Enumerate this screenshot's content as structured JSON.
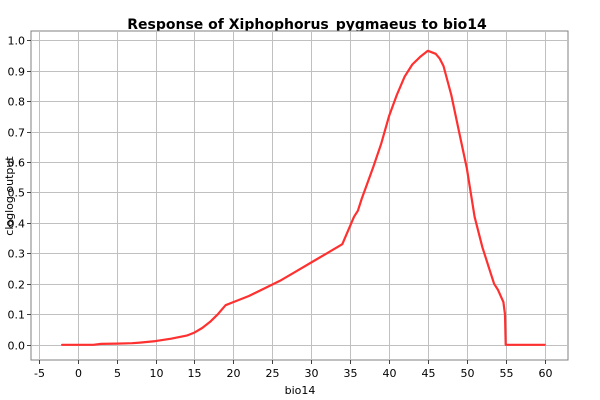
{
  "chart_data": {
    "type": "line",
    "title": "Response of Xiphophorus_pygmaeus to bio14",
    "xlabel": "bio14",
    "ylabel": "cloglog output",
    "xlim": [
      -6,
      63
    ],
    "ylim": [
      -0.05,
      1.03
    ],
    "xticks": [
      -5,
      0,
      5,
      10,
      15,
      20,
      25,
      30,
      35,
      40,
      45,
      50,
      55,
      60
    ],
    "yticks": [
      0.0,
      0.1,
      0.2,
      0.3,
      0.4,
      0.5,
      0.6,
      0.7,
      0.8,
      0.9,
      1.0
    ],
    "grid": true,
    "series": [
      {
        "color": "#ff3030",
        "x": [
          -2,
          0,
          2,
          3,
          5,
          7,
          8,
          10,
          12,
          14,
          15,
          16,
          17,
          18,
          18.5,
          19,
          20,
          22,
          24,
          26,
          28,
          30,
          32,
          34,
          35.5,
          36,
          36.5,
          37,
          38,
          39,
          40,
          41,
          42,
          43,
          44,
          45,
          45.5,
          46,
          46.5,
          47,
          48,
          49,
          50,
          51,
          52,
          53,
          53.5,
          54,
          54.7,
          54.9,
          55,
          55.5,
          58,
          60
        ],
        "y": [
          0.0,
          0.0,
          0.0,
          0.003,
          0.004,
          0.005,
          0.007,
          0.012,
          0.02,
          0.03,
          0.04,
          0.055,
          0.075,
          0.1,
          0.115,
          0.13,
          0.14,
          0.16,
          0.185,
          0.21,
          0.24,
          0.27,
          0.3,
          0.33,
          0.42,
          0.44,
          0.48,
          0.515,
          0.585,
          0.66,
          0.75,
          0.82,
          0.88,
          0.92,
          0.945,
          0.965,
          0.96,
          0.955,
          0.94,
          0.915,
          0.82,
          0.7,
          0.58,
          0.42,
          0.32,
          0.24,
          0.2,
          0.18,
          0.14,
          0.1,
          0.0,
          0.0,
          0.0,
          0.0
        ]
      }
    ]
  }
}
